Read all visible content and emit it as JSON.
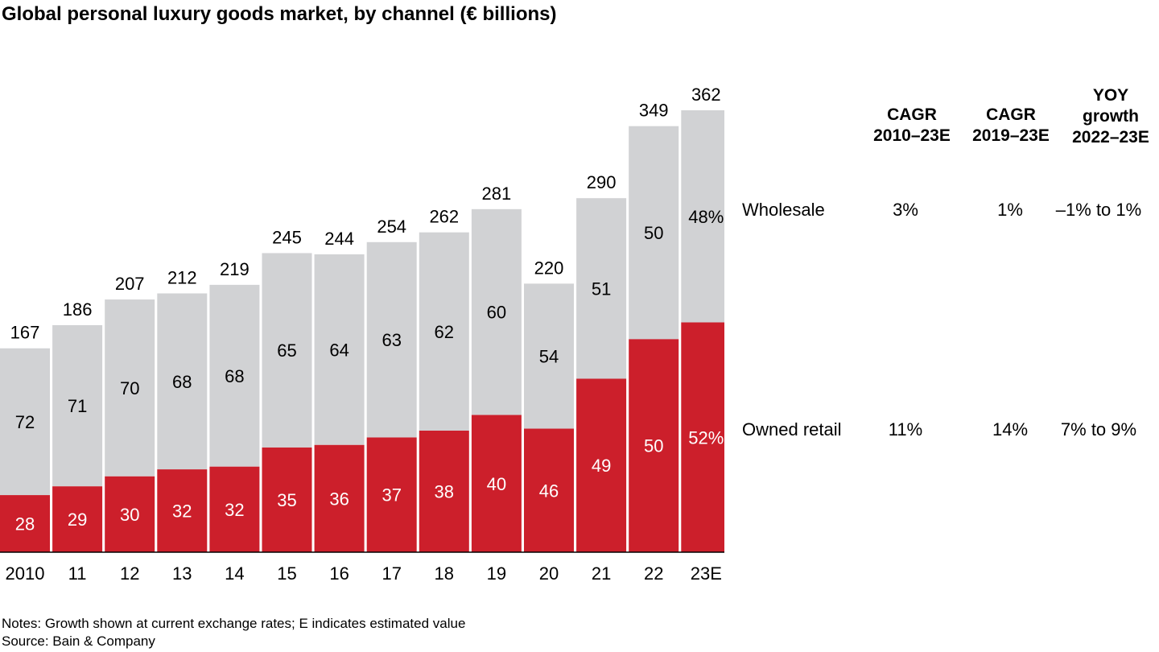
{
  "chart_data": {
    "type": "bar",
    "stacked": true,
    "title": "Global personal luxury goods market, by channel (€ billions)",
    "categories": [
      "2010",
      "11",
      "12",
      "13",
      "14",
      "15",
      "16",
      "17",
      "18",
      "19",
      "20",
      "21",
      "22",
      "23E"
    ],
    "totals": [
      "167",
      "186",
      "207",
      "212",
      "219",
      "245",
      "244",
      "254",
      "262",
      "281",
      "220",
      "290",
      "349",
      "362"
    ],
    "totals_values": [
      167,
      186,
      207,
      212,
      219,
      245,
      244,
      254,
      262,
      281,
      220,
      290,
      349,
      362
    ],
    "series": [
      {
        "key": "owned",
        "share_pct": [
          28,
          29,
          30,
          32,
          32,
          35,
          36,
          37,
          38,
          40,
          46,
          49,
          50,
          52
        ],
        "labels": [
          "28",
          "29",
          "30",
          "32",
          "32",
          "35",
          "36",
          "37",
          "38",
          "40",
          "46",
          "49",
          "50",
          "52%"
        ],
        "color": "#cc1f2b",
        "label_color": "#ffffff"
      },
      {
        "key": "wholesale",
        "share_pct": [
          72,
          71,
          70,
          68,
          68,
          65,
          64,
          63,
          62,
          60,
          54,
          51,
          50,
          48
        ],
        "labels": [
          "72",
          "71",
          "70",
          "68",
          "68",
          "65",
          "64",
          "63",
          "62",
          "60",
          "54",
          "51",
          "50",
          "48%"
        ],
        "color": "#d1d2d4",
        "label_color": "#000000"
      }
    ],
    "ylim": [
      0,
      362
    ],
    "grid": false,
    "legend": "none"
  },
  "table": {
    "headers": [
      [
        "CAGR",
        "2010–23E"
      ],
      [
        "CAGR",
        "2019–23E"
      ],
      [
        "YOY",
        "growth",
        "2022–23E"
      ]
    ],
    "rows": [
      {
        "label": "Wholesale",
        "values": [
          "3%",
          "1%",
          "–1% to 1%"
        ]
      },
      {
        "label": "Owned retail",
        "values": [
          "11%",
          "14%",
          "7% to 9%"
        ]
      }
    ]
  },
  "notes": [
    "Notes: Growth shown at current exchange rates; E indicates estimated value",
    "Source: Bain & Company"
  ]
}
